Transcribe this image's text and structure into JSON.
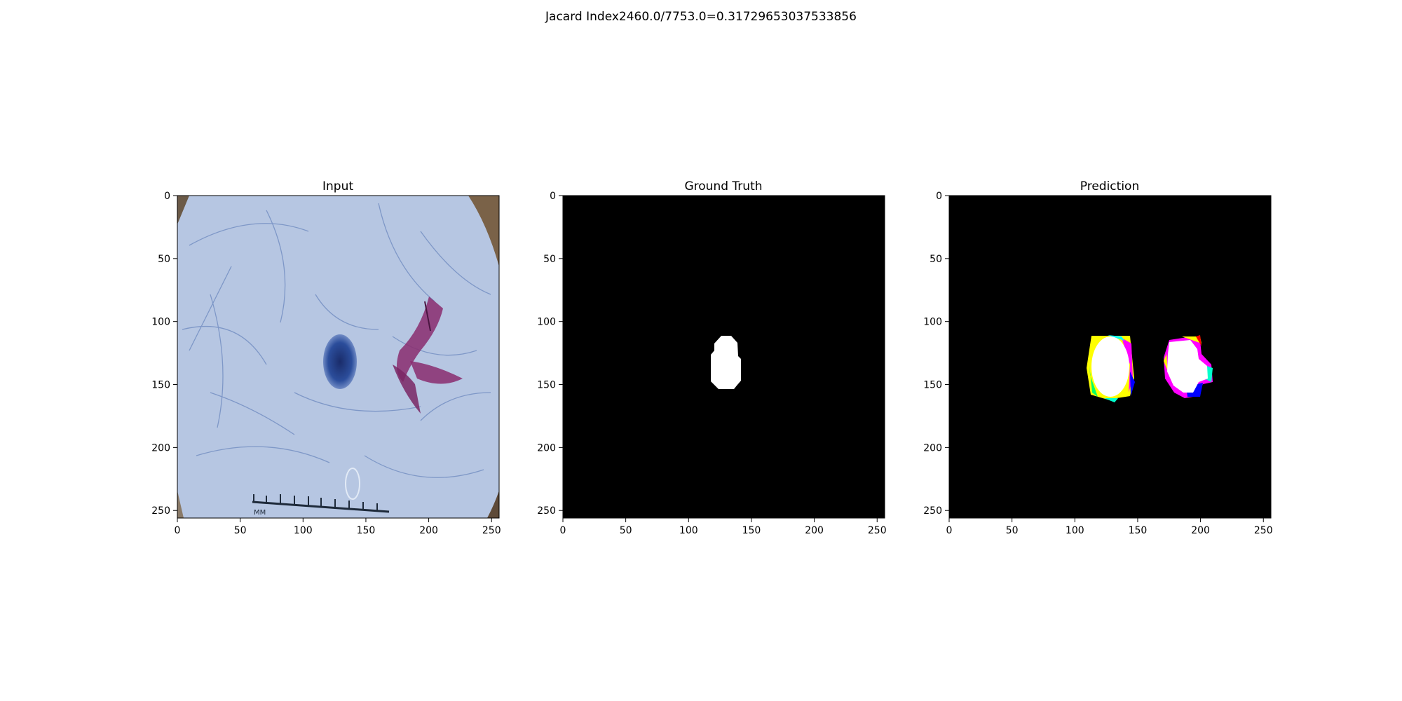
{
  "figure": {
    "suptitle": "Jacard Index2460.0/7753.0=0.31729653037533856"
  },
  "panels": [
    {
      "title": "Input"
    },
    {
      "title": "Ground Truth"
    },
    {
      "title": "Prediction"
    }
  ],
  "axes": {
    "x_ticks": [
      "0",
      "50",
      "100",
      "150",
      "200",
      "250"
    ],
    "y_ticks": [
      "0",
      "50",
      "100",
      "150",
      "200",
      "250"
    ],
    "xlim": [
      0,
      256
    ],
    "ylim": [
      256,
      0
    ]
  },
  "image_content": {
    "input": {
      "background_color": "#b6c6e2",
      "lesion_color": "#2b4d9b",
      "marker_color": "#8a2c6f",
      "ruler_label": "MM"
    },
    "ground_truth": {
      "mask_color": "#ffffff",
      "background_color": "#000000",
      "region_center": [
        130,
        133
      ],
      "region_semi_axes": [
        12,
        20
      ]
    },
    "prediction": {
      "mask_color": "#ffffff",
      "background_color": "#000000",
      "regions": [
        {
          "center": [
            128,
            135
          ],
          "semi_axes": [
            16,
            25
          ]
        },
        {
          "center": [
            190,
            133
          ],
          "semi_axes": [
            17,
            23
          ]
        }
      ]
    }
  }
}
